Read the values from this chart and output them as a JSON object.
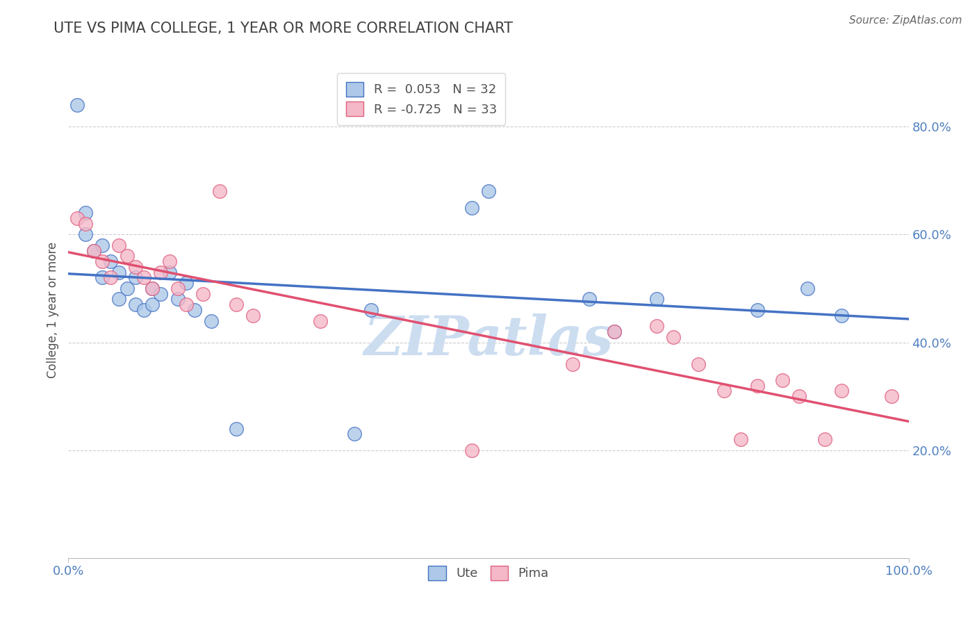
{
  "title": "UTE VS PIMA COLLEGE, 1 YEAR OR MORE CORRELATION CHART",
  "source": "Source: ZipAtlas.com",
  "ylabel": "College, 1 year or more",
  "R_ute": 0.053,
  "N_ute": 32,
  "R_pima": -0.725,
  "N_pima": 33,
  "ute_x": [
    0.01,
    0.02,
    0.02,
    0.03,
    0.04,
    0.04,
    0.05,
    0.06,
    0.06,
    0.07,
    0.08,
    0.08,
    0.09,
    0.1,
    0.1,
    0.11,
    0.12,
    0.13,
    0.14,
    0.15,
    0.17,
    0.2,
    0.34,
    0.36,
    0.62,
    0.65,
    0.7,
    0.82,
    0.88,
    0.92,
    0.5,
    0.48
  ],
  "ute_y": [
    0.84,
    0.64,
    0.6,
    0.57,
    0.58,
    0.52,
    0.55,
    0.53,
    0.48,
    0.5,
    0.52,
    0.47,
    0.46,
    0.47,
    0.5,
    0.49,
    0.53,
    0.48,
    0.51,
    0.46,
    0.44,
    0.24,
    0.23,
    0.46,
    0.48,
    0.42,
    0.48,
    0.46,
    0.5,
    0.45,
    0.68,
    0.65
  ],
  "pima_x": [
    0.01,
    0.02,
    0.03,
    0.04,
    0.05,
    0.06,
    0.07,
    0.08,
    0.09,
    0.1,
    0.11,
    0.12,
    0.13,
    0.14,
    0.16,
    0.18,
    0.2,
    0.22,
    0.3,
    0.48,
    0.6,
    0.65,
    0.7,
    0.72,
    0.75,
    0.78,
    0.8,
    0.82,
    0.85,
    0.87,
    0.9,
    0.92,
    0.98
  ],
  "pima_y": [
    0.63,
    0.62,
    0.57,
    0.55,
    0.52,
    0.58,
    0.56,
    0.54,
    0.52,
    0.5,
    0.53,
    0.55,
    0.5,
    0.47,
    0.49,
    0.68,
    0.47,
    0.45,
    0.44,
    0.2,
    0.36,
    0.42,
    0.43,
    0.41,
    0.36,
    0.31,
    0.22,
    0.32,
    0.33,
    0.3,
    0.22,
    0.31,
    0.3
  ],
  "xlim": [
    0.0,
    1.0
  ],
  "ylim": [
    0.0,
    0.92
  ],
  "yticks": [
    0.2,
    0.4,
    0.6,
    0.8
  ],
  "ytick_labels": [
    "20.0%",
    "40.0%",
    "60.0%",
    "80.0%"
  ],
  "xtick_labels": [
    "0.0%",
    "100.0%"
  ],
  "bg_color": "#ffffff",
  "blue_fill": "#adc8e8",
  "blue_edge": "#4472c4",
  "pink_fill": "#f4b8c8",
  "pink_edge": "#e06080",
  "blue_line": "#4472c4",
  "pink_line": "#e05070",
  "grid_color": "#cccccc",
  "title_color": "#404040",
  "tick_label_color": "#5080c0",
  "watermark_text": "ZIPatlas",
  "watermark_color": "#ccddf0"
}
